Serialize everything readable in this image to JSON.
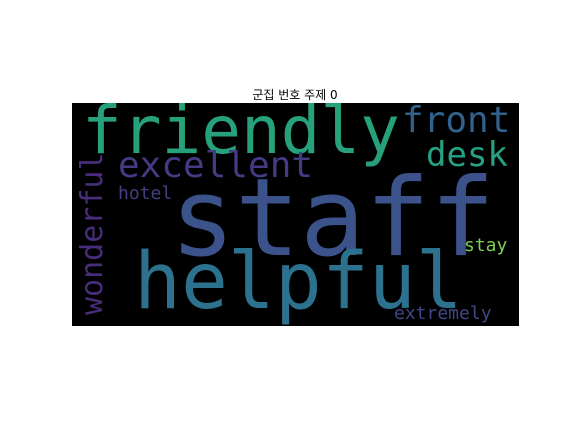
{
  "chart_data": {
    "type": "wordcloud",
    "title": "군집 번호 주제 0",
    "background_color": "#000000",
    "colormap": "viridis",
    "words": [
      {
        "text": "staff",
        "color": "#3b528b"
      },
      {
        "text": "helpful",
        "color": "#2c728e"
      },
      {
        "text": "friendly",
        "color": "#27a07c"
      },
      {
        "text": "excellent",
        "color": "#433b84"
      },
      {
        "text": "front",
        "color": "#31628e"
      },
      {
        "text": "desk",
        "color": "#25a184"
      },
      {
        "text": "wonderful",
        "color": "#472d7b"
      },
      {
        "text": "hotel",
        "color": "#433e85"
      },
      {
        "text": "stay",
        "color": "#7ad151"
      },
      {
        "text": "extremely",
        "color": "#404688"
      }
    ]
  }
}
